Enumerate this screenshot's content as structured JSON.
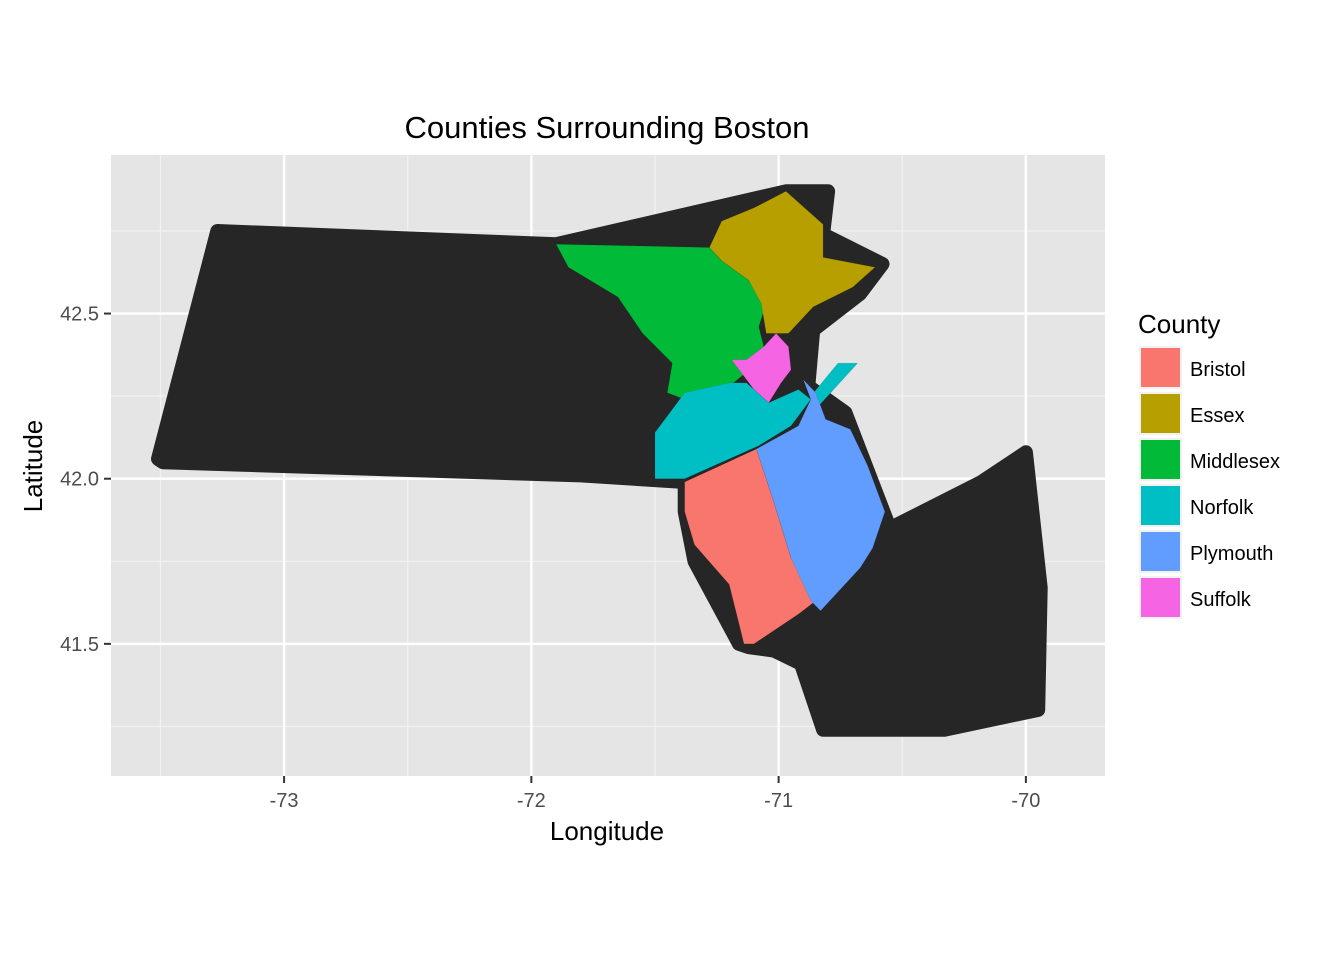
{
  "chart_data": {
    "type": "map",
    "title": "Counties Surrounding Boston",
    "xlabel": "Longitude",
    "ylabel": "Latitude",
    "xlim": [
      -73.7,
      -69.68
    ],
    "ylim": [
      41.1,
      42.98
    ],
    "x_ticks": [
      -73,
      -72,
      -71,
      -70
    ],
    "y_ticks": [
      41.5,
      42.0,
      42.5
    ],
    "x_tick_labels": [
      "-73",
      "-72",
      "-71",
      "-70"
    ],
    "y_tick_labels": [
      "41.5",
      "42.0",
      "42.5"
    ],
    "grid": true,
    "panel_background": "#e5e5e5",
    "base_fill": "#262626",
    "legend": {
      "title": "County",
      "placement": "right",
      "entries": [
        {
          "label": "Bristol",
          "color": "#f8766d"
        },
        {
          "label": "Essex",
          "color": "#b79f00"
        },
        {
          "label": "Middlesex",
          "color": "#00ba38"
        },
        {
          "label": "Norfolk",
          "color": "#00bfc4"
        },
        {
          "label": "Plymouth",
          "color": "#619cff"
        },
        {
          "label": "Suffolk",
          "color": "#f564e3"
        }
      ]
    },
    "regions": [
      {
        "name": "Massachusetts",
        "fill": "#262626",
        "coords": [
          [
            -73.51,
            42.06
          ],
          [
            -73.27,
            42.75
          ],
          [
            -71.9,
            42.71
          ],
          [
            -70.97,
            42.87
          ],
          [
            -70.8,
            42.87
          ],
          [
            -70.82,
            42.74
          ],
          [
            -70.58,
            42.65
          ],
          [
            -70.67,
            42.56
          ],
          [
            -70.86,
            42.45
          ],
          [
            -70.88,
            42.28
          ],
          [
            -70.73,
            42.2
          ],
          [
            -70.55,
            41.85
          ],
          [
            -70.18,
            41.99
          ],
          [
            -70.0,
            42.08
          ],
          [
            -69.94,
            41.67
          ],
          [
            -69.95,
            41.3
          ],
          [
            -70.33,
            41.24
          ],
          [
            -70.82,
            41.24
          ],
          [
            -70.91,
            41.44
          ],
          [
            -71.02,
            41.48
          ],
          [
            -71.12,
            41.49
          ],
          [
            -71.16,
            41.5
          ],
          [
            -71.34,
            41.75
          ],
          [
            -71.38,
            41.9
          ],
          [
            -71.38,
            41.99
          ],
          [
            -71.8,
            42.01
          ],
          [
            -73.49,
            42.05
          ]
        ]
      },
      {
        "name": "Middlesex",
        "fill": "#00ba38",
        "coords": [
          [
            -71.9,
            42.71
          ],
          [
            -71.28,
            42.7
          ],
          [
            -71.23,
            42.66
          ],
          [
            -71.12,
            42.6
          ],
          [
            -71.05,
            42.53
          ],
          [
            -71.08,
            42.46
          ],
          [
            -71.05,
            42.37
          ],
          [
            -71.2,
            42.28
          ],
          [
            -71.38,
            42.24
          ],
          [
            -71.45,
            42.26
          ],
          [
            -71.43,
            42.35
          ],
          [
            -71.55,
            42.44
          ],
          [
            -71.65,
            42.55
          ],
          [
            -71.85,
            42.64
          ]
        ]
      },
      {
        "name": "Essex",
        "fill": "#b79f00",
        "coords": [
          [
            -71.28,
            42.7
          ],
          [
            -71.23,
            42.78
          ],
          [
            -71.1,
            42.82
          ],
          [
            -70.97,
            42.87
          ],
          [
            -70.82,
            42.77
          ],
          [
            -70.82,
            42.67
          ],
          [
            -70.61,
            42.64
          ],
          [
            -70.7,
            42.58
          ],
          [
            -70.86,
            42.52
          ],
          [
            -70.96,
            42.44
          ],
          [
            -71.05,
            42.44
          ],
          [
            -71.07,
            42.53
          ],
          [
            -71.12,
            42.6
          ],
          [
            -71.23,
            42.66
          ]
        ]
      },
      {
        "name": "Suffolk",
        "fill": "#f564e3",
        "coords": [
          [
            -71.19,
            42.36
          ],
          [
            -71.1,
            42.27
          ],
          [
            -71.04,
            42.23
          ],
          [
            -70.99,
            42.29
          ],
          [
            -70.95,
            42.33
          ],
          [
            -70.96,
            42.4
          ],
          [
            -71.01,
            42.44
          ],
          [
            -71.06,
            42.4
          ],
          [
            -71.13,
            42.36
          ]
        ]
      },
      {
        "name": "Norfolk",
        "fill": "#00bfc4",
        "coords": [
          [
            -71.5,
            42.14
          ],
          [
            -71.38,
            42.26
          ],
          [
            -71.2,
            42.29
          ],
          [
            -71.13,
            42.29
          ],
          [
            -71.04,
            42.23
          ],
          [
            -70.92,
            42.27
          ],
          [
            -70.87,
            42.24
          ],
          [
            -70.95,
            42.16
          ],
          [
            -71.08,
            42.1
          ],
          [
            -71.38,
            42.0
          ],
          [
            -71.5,
            42.0
          ]
        ]
      },
      {
        "name": "Norfolk (Cohasset strip)",
        "fill": "#00bfc4",
        "coords": [
          [
            -70.76,
            42.35
          ],
          [
            -70.68,
            42.35
          ],
          [
            -70.85,
            42.21
          ],
          [
            -70.87,
            42.25
          ]
        ]
      },
      {
        "name": "Bristol",
        "fill": "#f8766d",
        "coords": [
          [
            -71.38,
            41.99
          ],
          [
            -71.09,
            42.09
          ],
          [
            -71.02,
            41.93
          ],
          [
            -70.95,
            41.76
          ],
          [
            -70.85,
            41.63
          ],
          [
            -70.92,
            41.59
          ],
          [
            -71.1,
            41.5
          ],
          [
            -71.14,
            41.5
          ],
          [
            -71.2,
            41.68
          ],
          [
            -71.34,
            41.8
          ],
          [
            -71.38,
            41.9
          ]
        ]
      },
      {
        "name": "Plymouth",
        "fill": "#619cff",
        "coords": [
          [
            -71.09,
            42.09
          ],
          [
            -70.92,
            42.16
          ],
          [
            -70.87,
            42.24
          ],
          [
            -70.9,
            42.3
          ],
          [
            -70.85,
            42.26
          ],
          [
            -70.81,
            42.18
          ],
          [
            -70.71,
            42.15
          ],
          [
            -70.64,
            42.04
          ],
          [
            -70.57,
            41.9
          ],
          [
            -70.62,
            41.79
          ],
          [
            -70.67,
            41.73
          ],
          [
            -70.83,
            41.6
          ],
          [
            -70.87,
            41.63
          ],
          [
            -70.95,
            41.76
          ],
          [
            -71.02,
            41.93
          ]
        ]
      }
    ]
  }
}
